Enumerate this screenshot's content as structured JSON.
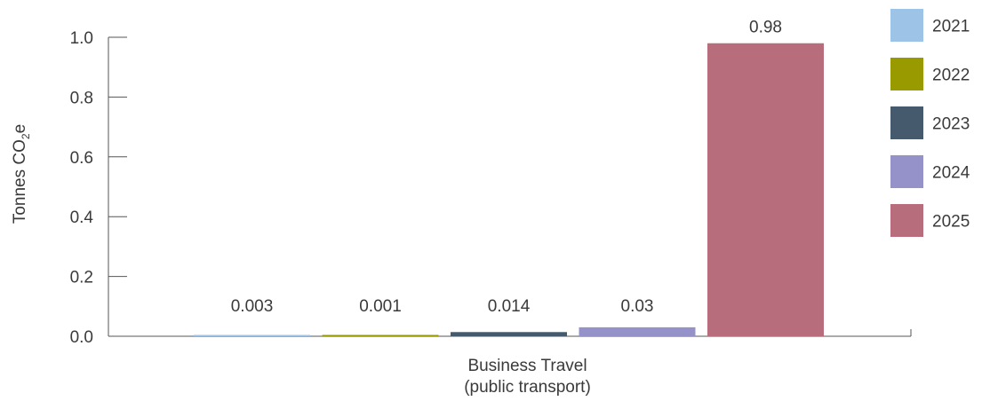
{
  "chart_data": {
    "type": "bar",
    "ylabel_main": "Tonnes CO",
    "ylabel_sub": "2",
    "ylabel_suffix": "e",
    "xlabel_lines": [
      "Business Travel",
      "(public transport)"
    ],
    "ylim": [
      0,
      1.0
    ],
    "yticks": [
      {
        "value": 0.0,
        "label": "0.0"
      },
      {
        "value": 0.2,
        "label": "0.2"
      },
      {
        "value": 0.4,
        "label": "0.4"
      },
      {
        "value": 0.6,
        "label": "0.6"
      },
      {
        "value": 0.8,
        "label": "0.8"
      },
      {
        "value": 1.0,
        "label": "1.0"
      }
    ],
    "grid": false,
    "legend_position": "right",
    "series": [
      {
        "name": "2021",
        "value": 0.003,
        "label": "0.003",
        "color": "#9dc3e6"
      },
      {
        "name": "2022",
        "value": 0.001,
        "label": "0.001",
        "color": "#999900"
      },
      {
        "name": "2023",
        "value": 0.014,
        "label": "0.014",
        "color": "#465a6e"
      },
      {
        "name": "2024",
        "value": 0.03,
        "label": "0.03",
        "color": "#9492c9"
      },
      {
        "name": "2025",
        "value": 0.98,
        "label": "0.98",
        "color": "#b76d7c"
      }
    ]
  }
}
